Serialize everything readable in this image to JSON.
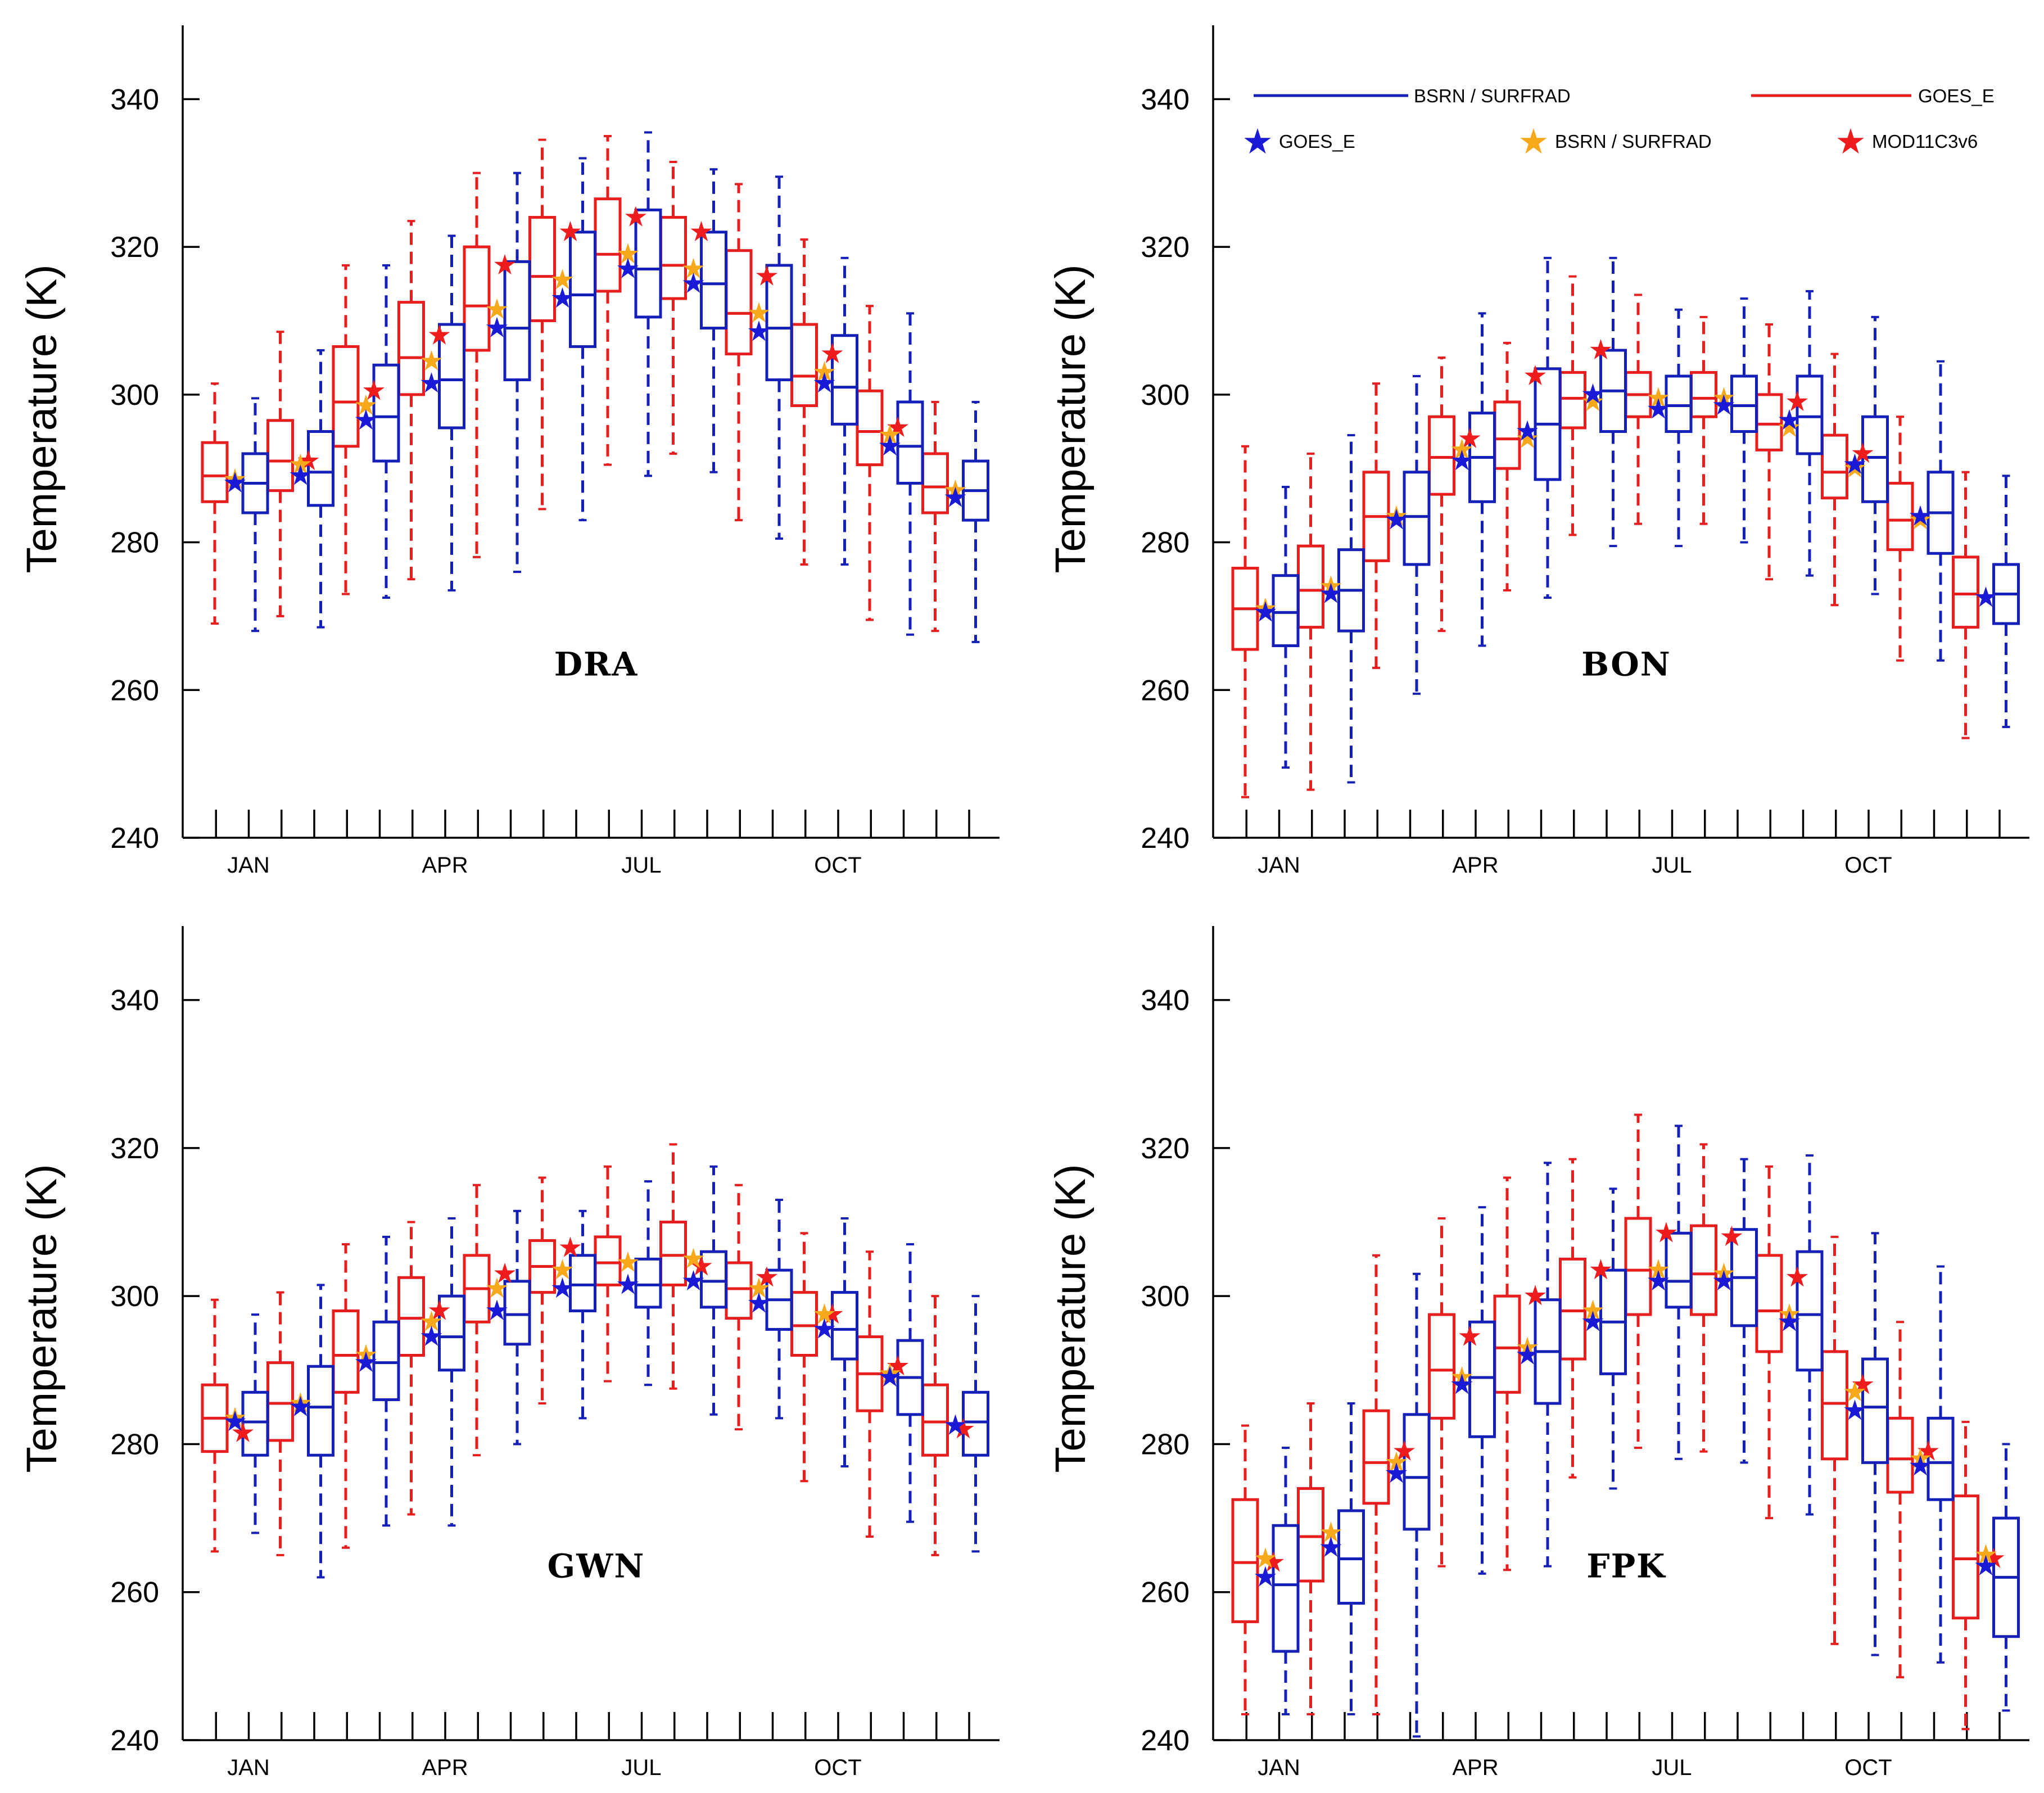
{
  "y_axis_label": "Temperature (K)",
  "legend": {
    "lines": [
      {
        "label": "BSRN / SURFRAD",
        "color": "#1420b8"
      },
      {
        "label": "GOES_E",
        "color": "#e81e1e"
      }
    ],
    "stars": [
      {
        "label": "GOES_E",
        "color": "#1a1ad6"
      },
      {
        "label": "BSRN / SURFRAD",
        "color": "#f7a81b"
      },
      {
        "label": "MOD11C3v6",
        "color": "#ee1c1c"
      }
    ]
  },
  "colors": {
    "goes_box": "#e81e1e",
    "bsrn_box": "#1420b8",
    "star_goes": "#1a1ad6",
    "star_bsrn": "#f7a81b",
    "star_modis": "#ee1c1c"
  },
  "chart_data": [
    {
      "type": "box",
      "title": "DRA",
      "ylabel": "Temperature (K)",
      "ylim": [
        240,
        350
      ],
      "yticks": [
        240,
        260,
        280,
        300,
        320,
        340
      ],
      "xticklabels": [
        "JAN",
        "APR",
        "JUL",
        "OCT"
      ],
      "months": [
        1,
        2,
        3,
        4,
        5,
        6,
        7,
        8,
        9,
        10,
        11,
        12
      ],
      "series": [
        {
          "name": "GOES_E",
          "boxes": [
            [
              269,
              285.5,
              289,
              293.5,
              301.5
            ],
            [
              270,
              287,
              291,
              296.5,
              308.5
            ],
            [
              273,
              293,
              299,
              306.5,
              317.5
            ],
            [
              275,
              300,
              305,
              312.5,
              323.5
            ],
            [
              278,
              306,
              312,
              320,
              330
            ],
            [
              284.5,
              310,
              316,
              324,
              334.5
            ],
            [
              290.5,
              314,
              319,
              326.5,
              335
            ],
            [
              292,
              313,
              317.5,
              324,
              331.5
            ],
            [
              283,
              305.5,
              311,
              319.5,
              328.5
            ],
            [
              277,
              298.5,
              302.5,
              309.5,
              321
            ],
            [
              269.5,
              290.5,
              295,
              300.5,
              312
            ],
            [
              268,
              284,
              287.5,
              292,
              299
            ]
          ]
        },
        {
          "name": "BSRN / SURFRAD",
          "boxes": [
            [
              268,
              284,
              288,
              292,
              299.5
            ],
            [
              268.5,
              285,
              289.5,
              295,
              306
            ],
            [
              272.5,
              291,
              297,
              304,
              317.5
            ],
            [
              273.5,
              295.5,
              302,
              309.5,
              321.5
            ],
            [
              276,
              302,
              309,
              318,
              330
            ],
            [
              283,
              306.5,
              313.5,
              322,
              332
            ],
            [
              289,
              310.5,
              317,
              325,
              335.5
            ],
            [
              289.5,
              309,
              315,
              322,
              330.5
            ],
            [
              280.5,
              302,
              309,
              317.5,
              329.5
            ],
            [
              277,
              296,
              301,
              308,
              318.5
            ],
            [
              267.5,
              288,
              293,
              299,
              311
            ],
            [
              266.5,
              283,
              287,
              291,
              299
            ]
          ]
        }
      ],
      "stars": {
        "GOES_E": [
          288,
          289,
          296.5,
          301.5,
          309,
          313,
          317,
          315,
          308.5,
          301.5,
          293,
          286
        ],
        "BSRN / SURFRAD": [
          288.5,
          290.5,
          298.5,
          304.5,
          311.5,
          315.5,
          319,
          317,
          311,
          303,
          294.5,
          287
        ],
        "MOD11C3v6": [
          null,
          291,
          300.5,
          308,
          317.5,
          322,
          324,
          322,
          316,
          305.5,
          295.5,
          null
        ]
      }
    },
    {
      "type": "box",
      "title": "BON",
      "ylabel": "Temperature (K)",
      "ylim": [
        240,
        350
      ],
      "yticks": [
        240,
        260,
        280,
        300,
        320,
        340
      ],
      "xticklabels": [
        "JAN",
        "APR",
        "JUL",
        "OCT"
      ],
      "months": [
        1,
        2,
        3,
        4,
        5,
        6,
        7,
        8,
        9,
        10,
        11,
        12
      ],
      "series": [
        {
          "name": "GOES_E",
          "boxes": [
            [
              245.5,
              265.5,
              271,
              276.5,
              293
            ],
            [
              246.5,
              268.5,
              273.5,
              279.5,
              292
            ],
            [
              263,
              277.5,
              283.5,
              289.5,
              301.5
            ],
            [
              268,
              286.5,
              291.5,
              297,
              305
            ],
            [
              273.5,
              290,
              294,
              299,
              307
            ],
            [
              281,
              295.5,
              299.5,
              303,
              316
            ],
            [
              282.5,
              297,
              300,
              303,
              313.5
            ],
            [
              282.5,
              297,
              299.5,
              303,
              310.5
            ],
            [
              275,
              292.5,
              296,
              300,
              309.5
            ],
            [
              271.5,
              286,
              289.5,
              294.5,
              305.5
            ],
            [
              264,
              279,
              283,
              288,
              297
            ],
            [
              253.5,
              268.5,
              273,
              278,
              289.5
            ]
          ]
        },
        {
          "name": "BSRN / SURFRAD",
          "boxes": [
            [
              249.5,
              266,
              270.5,
              275.5,
              287.5
            ],
            [
              247.5,
              268,
              273.5,
              279,
              294.5
            ],
            [
              259.5,
              277,
              283.5,
              289.5,
              302.5
            ],
            [
              266,
              285.5,
              291.5,
              297.5,
              311
            ],
            [
              272.5,
              288.5,
              296,
              303.5,
              318.5
            ],
            [
              279.5,
              295,
              300.5,
              306,
              318.5
            ],
            [
              279.5,
              295,
              298.5,
              302.5,
              311.5
            ],
            [
              280,
              295,
              298.5,
              302.5,
              313
            ],
            [
              275.5,
              292,
              297,
              302.5,
              314
            ],
            [
              273,
              285.5,
              291.5,
              297,
              310.5
            ],
            [
              264,
              278.5,
              284,
              289.5,
              304.5
            ],
            [
              255,
              269,
              273,
              277,
              289
            ]
          ]
        }
      ],
      "stars": {
        "GOES_E": [
          270.5,
          273,
          283,
          291,
          295,
          300,
          298,
          298.5,
          296.5,
          290.5,
          283.5,
          272.5
        ],
        "BSRN / SURFRAD": [
          271,
          274,
          283.5,
          292.5,
          294,
          299,
          299.5,
          299.5,
          295.5,
          290,
          283,
          272.5
        ],
        "MOD11C3v6": [
          null,
          null,
          null,
          294,
          302.5,
          306,
          null,
          null,
          299,
          292,
          null,
          null
        ]
      }
    },
    {
      "type": "box",
      "title": "GWN",
      "ylabel": "Temperature (K)",
      "ylim": [
        240,
        350
      ],
      "yticks": [
        240,
        260,
        280,
        300,
        320,
        340
      ],
      "xticklabels": [
        "JAN",
        "APR",
        "JUL",
        "OCT"
      ],
      "months": [
        1,
        2,
        3,
        4,
        5,
        6,
        7,
        8,
        9,
        10,
        11,
        12
      ],
      "series": [
        {
          "name": "GOES_E",
          "boxes": [
            [
              265.5,
              279,
              283.5,
              288,
              299.5
            ],
            [
              265,
              280.5,
              285.5,
              291,
              300.5
            ],
            [
              266,
              287,
              292,
              298,
              307
            ],
            [
              270.5,
              292,
              297,
              302.5,
              310
            ],
            [
              278.5,
              296.5,
              301,
              305.5,
              315
            ],
            [
              285.5,
              300.5,
              304,
              307.5,
              316
            ],
            [
              288.5,
              301.5,
              304.5,
              308,
              317.5
            ],
            [
              287.5,
              301.5,
              305.5,
              310,
              320.5
            ],
            [
              282,
              297,
              301,
              304.5,
              315
            ],
            [
              275,
              292,
              296,
              300.5,
              308.5
            ],
            [
              267.5,
              284.5,
              289.5,
              294.5,
              306
            ],
            [
              265,
              278.5,
              283,
              288,
              300
            ]
          ]
        },
        {
          "name": "BSRN / SURFRAD",
          "boxes": [
            [
              268,
              278.5,
              283,
              287,
              297.5
            ],
            [
              262,
              278.5,
              285,
              290.5,
              301.5
            ],
            [
              269,
              286,
              291,
              296.5,
              308
            ],
            [
              269,
              290,
              294.5,
              300,
              310.5
            ],
            [
              280,
              293.5,
              297.5,
              302,
              311.5
            ],
            [
              283.5,
              298,
              301.5,
              305.5,
              311.5
            ],
            [
              288,
              298.5,
              301.5,
              305,
              315.5
            ],
            [
              284,
              298.5,
              302,
              306,
              317.5
            ],
            [
              283.5,
              295.5,
              299.5,
              303.5,
              313
            ],
            [
              277,
              291.5,
              295.5,
              300.5,
              310.5
            ],
            [
              269.5,
              284,
              289,
              294,
              307
            ],
            [
              265.5,
              278.5,
              283,
              287,
              300
            ]
          ]
        }
      ],
      "stars": {
        "GOES_E": [
          283,
          285,
          291,
          294.5,
          298,
          301,
          301.5,
          302,
          299,
          295.5,
          289,
          282.5
        ],
        "BSRN / SURFRAD": [
          283.5,
          285.5,
          292,
          296.5,
          301,
          303.5,
          304.5,
          305,
          301,
          297.5,
          289.5,
          282.5
        ],
        "MOD11C3v6": [
          281.5,
          null,
          null,
          298,
          303,
          306.5,
          null,
          304,
          302.5,
          297.5,
          290.5,
          282
        ]
      }
    },
    {
      "type": "box",
      "title": "FPK",
      "ylabel": "Temperature (K)",
      "ylim": [
        240,
        350
      ],
      "yticks": [
        240,
        260,
        280,
        300,
        320,
        340
      ],
      "xticklabels": [
        "JAN",
        "APR",
        "JUL",
        "OCT"
      ],
      "months": [
        1,
        2,
        3,
        4,
        5,
        6,
        7,
        8,
        9,
        10,
        11,
        12
      ],
      "series": [
        {
          "name": "GOES_E",
          "boxes": [
            [
              243.5,
              256,
              264,
              272.5,
              282.5
            ],
            [
              243.5,
              261.5,
              267.5,
              274,
              285.5
            ],
            [
              243.5,
              272,
              277.5,
              284.5,
              305.5
            ],
            [
              263.5,
              283.5,
              290,
              297.5,
              310.5
            ],
            [
              263,
              287,
              293,
              300,
              316
            ],
            [
              275.5,
              291.5,
              298,
              305,
              318.5
            ],
            [
              279.5,
              297.5,
              303.5,
              310.5,
              324.5
            ],
            [
              279,
              297.5,
              303,
              309.5,
              320.5
            ],
            [
              270,
              292.5,
              298,
              305.5,
              317.5
            ],
            [
              253,
              278,
              285.5,
              292.5,
              308
            ],
            [
              248.5,
              273.5,
              278,
              283.5,
              296.5
            ],
            [
              241.5,
              256.5,
              264.5,
              273,
              283
            ]
          ]
        },
        {
          "name": "BSRN / SURFRAD",
          "boxes": [
            [
              243.5,
              252,
              261,
              269,
              279.5
            ],
            [
              243.5,
              258.5,
              264.5,
              271,
              285.5
            ],
            [
              240.5,
              268.5,
              275.5,
              284,
              303
            ],
            [
              262.5,
              281,
              289,
              296.5,
              312
            ],
            [
              263.5,
              285.5,
              292.5,
              299.5,
              318
            ],
            [
              274,
              289.5,
              296.5,
              303.5,
              314.5
            ],
            [
              278,
              298.5,
              302,
              308.5,
              323
            ],
            [
              277.5,
              296,
              302.5,
              309,
              318.5
            ],
            [
              270.5,
              290,
              297.5,
              306,
              319
            ],
            [
              251.5,
              277.5,
              285,
              291.5,
              308.5
            ],
            [
              250.5,
              272.5,
              277.5,
              283.5,
              304
            ],
            [
              244,
              254,
              262,
              270,
              280
            ]
          ]
        }
      ],
      "stars": {
        "GOES_E": [
          262,
          266,
          276,
          288,
          292,
          296.5,
          302,
          302,
          296.5,
          284.5,
          277,
          263.5
        ],
        "BSRN / SURFRAD": [
          264.5,
          268,
          277.5,
          289,
          293,
          298,
          303.5,
          303,
          297.5,
          287,
          278,
          265
        ],
        "MOD11C3v6": [
          264,
          null,
          279,
          294.5,
          300,
          303.5,
          308.5,
          308,
          302.5,
          288,
          279,
          264.5
        ]
      }
    }
  ]
}
